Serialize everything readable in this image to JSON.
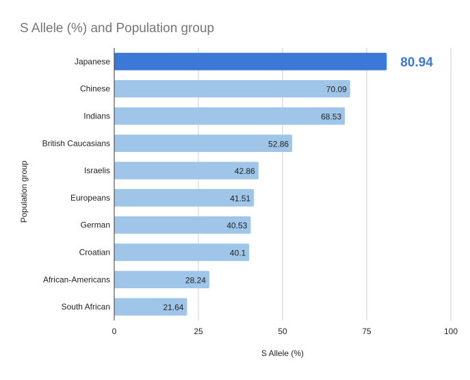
{
  "chart_data": {
    "type": "bar",
    "orientation": "horizontal",
    "title": "S Allele (%)  and  Population group",
    "xlabel": "S Allele (%)",
    "ylabel": "Population group",
    "xlim": [
      0,
      100
    ],
    "xticks": [
      "0",
      "25",
      "50",
      "75",
      "100"
    ],
    "xtick_values": [
      0,
      25,
      50,
      75,
      100
    ],
    "grid": true,
    "legend": "none",
    "categories": [
      "Japanese",
      "Chinese",
      "Indians",
      "British Caucasians",
      "Israelis",
      "Europeans",
      "German",
      "Croatian",
      "African-Americans",
      "South African"
    ],
    "values": [
      80.94,
      70.09,
      68.53,
      52.86,
      42.86,
      41.51,
      40.53,
      40.1,
      28.24,
      21.64
    ],
    "data_labels": [
      "80.94",
      "70.09",
      "68.53",
      "52.86",
      "42.86",
      "41.51",
      "40.53",
      "40.1",
      "28.24",
      "21.64"
    ],
    "highlight_index": 0,
    "colors": {
      "bar": "#9fc5e8",
      "highlight": "#3c78d8",
      "title": "#757575",
      "axis_text": "#222222",
      "grid": "#cccccc",
      "axis_line": "#333333"
    }
  }
}
